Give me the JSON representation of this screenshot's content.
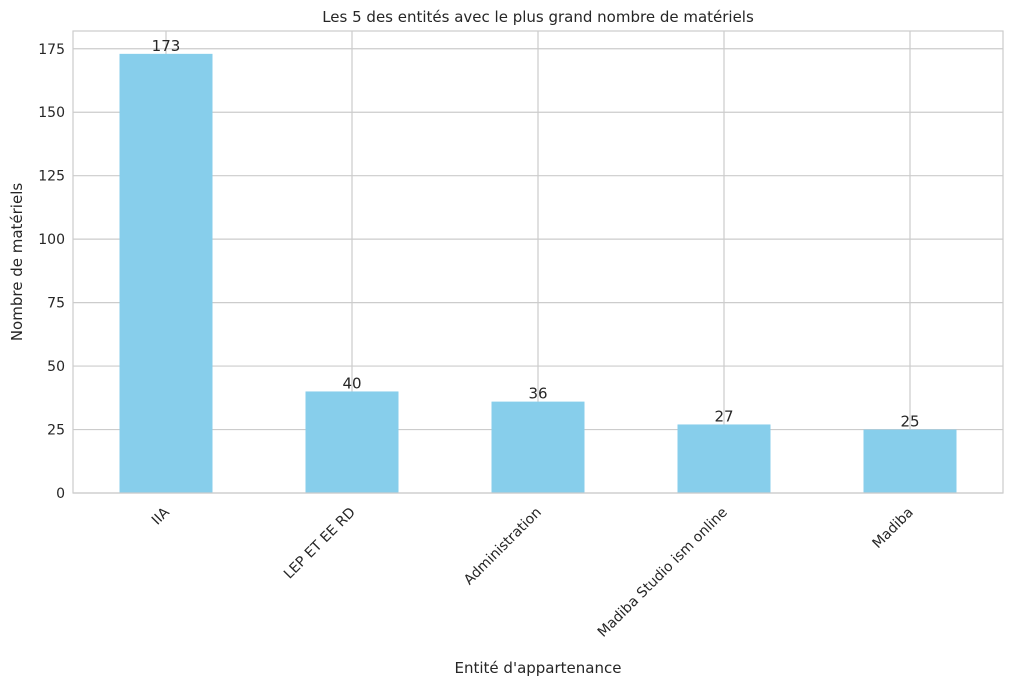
{
  "chart_data": {
    "type": "bar",
    "title": "Les 5 des entités avec le plus grand nombre de matériels",
    "xlabel": "Entité d'appartenance",
    "ylabel": "Nombre de matériels",
    "categories": [
      "IIA",
      "LEP ET EE RD",
      "Administration",
      "Madiba Studio ism online",
      "Madiba"
    ],
    "values": [
      173,
      40,
      36,
      27,
      25
    ],
    "value_labels": [
      "173",
      "40",
      "36",
      "27",
      "25"
    ],
    "ylim": [
      0,
      182
    ],
    "yticks": [
      0,
      25,
      50,
      75,
      100,
      125,
      150,
      175
    ],
    "ytick_labels": [
      "0",
      "25",
      "50",
      "75",
      "100",
      "125",
      "150",
      "175"
    ],
    "grid": true,
    "bar_color": "#87CEEB",
    "grid_color": "#CCCCCC",
    "x_tick_rotation": 45
  }
}
